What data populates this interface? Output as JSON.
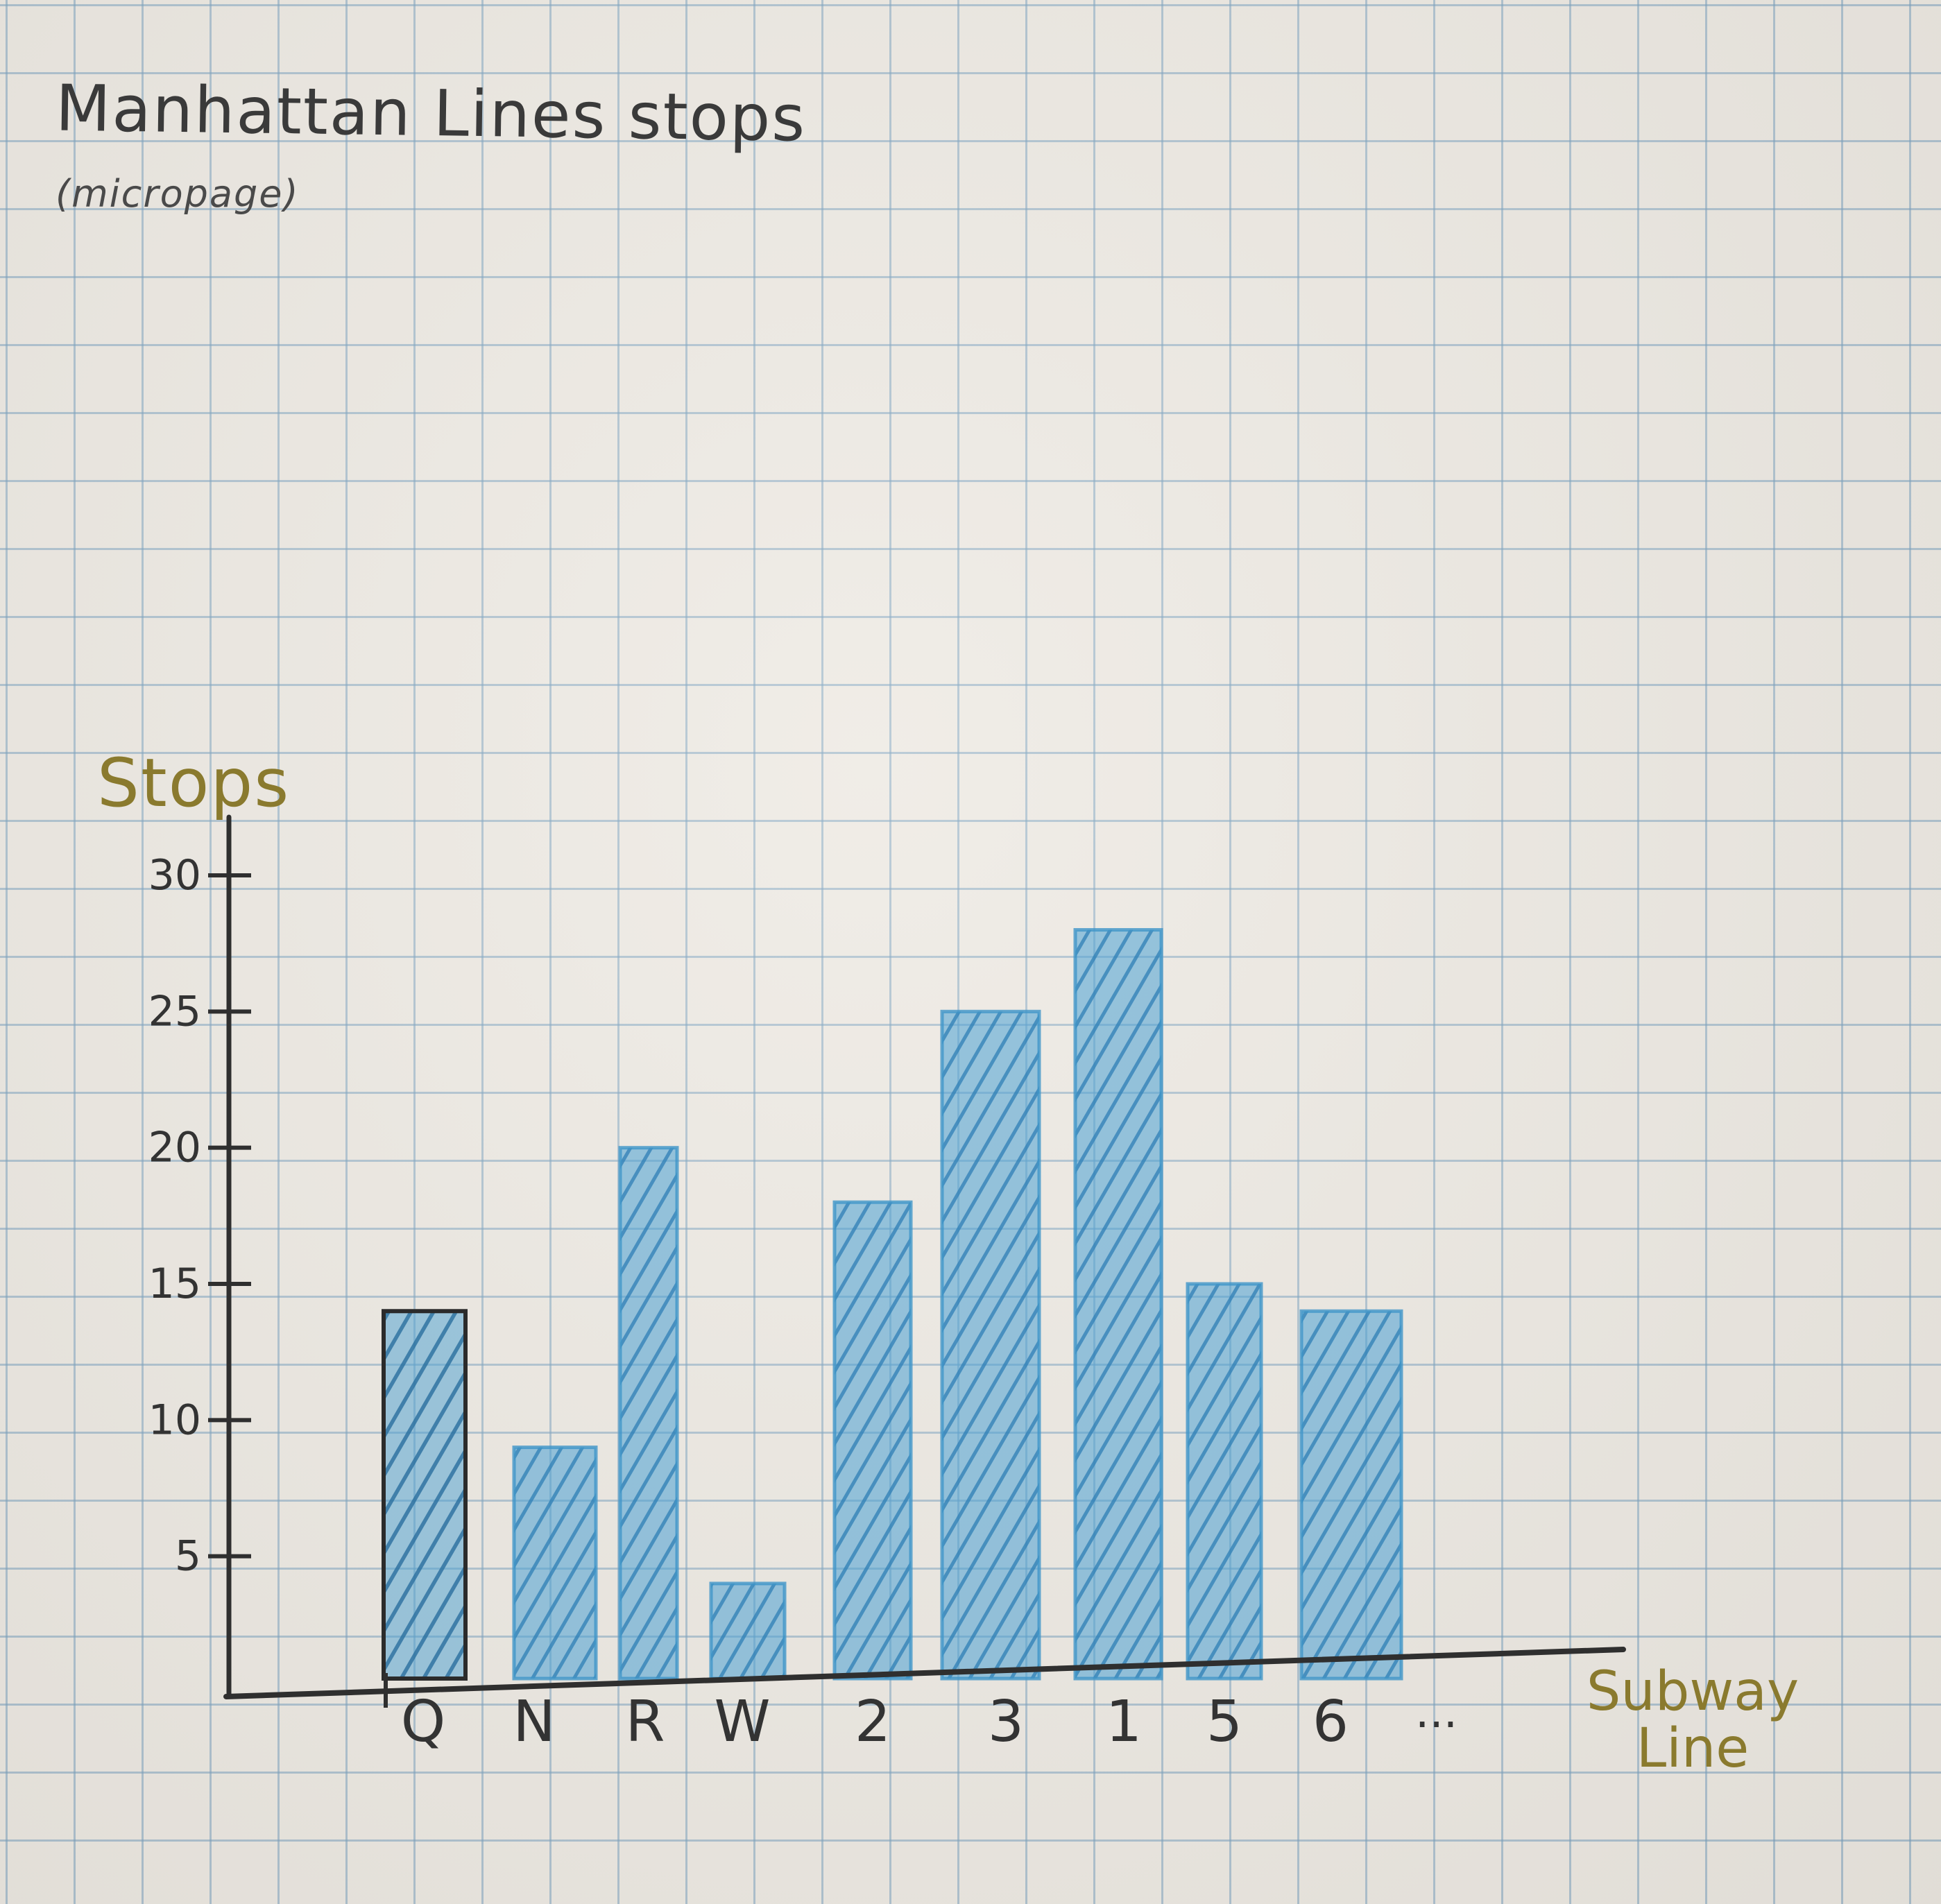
{
  "title": "Manhattan Lines stops",
  "subtitle": "(micropage)",
  "chart_data": {
    "type": "bar",
    "ylabel": "Stops",
    "xlabel": "Subway Line",
    "categories": [
      "Q",
      "N",
      "R",
      "W",
      "2",
      "3",
      "1",
      "5",
      "6"
    ],
    "x_tick_trailing": "...",
    "values": [
      14,
      9,
      20,
      4,
      18,
      25,
      28,
      15,
      14
    ],
    "yticks": [
      "5",
      "10",
      "15",
      "20",
      "25",
      "30"
    ],
    "ylim": [
      0,
      30
    ],
    "grid": true,
    "colors": {
      "outline": "#2b2b2b",
      "bar_fill": "#3f95c8",
      "axis_label": "#8a7a2e",
      "axis": "#2f2f2f",
      "text": "#333333"
    }
  }
}
